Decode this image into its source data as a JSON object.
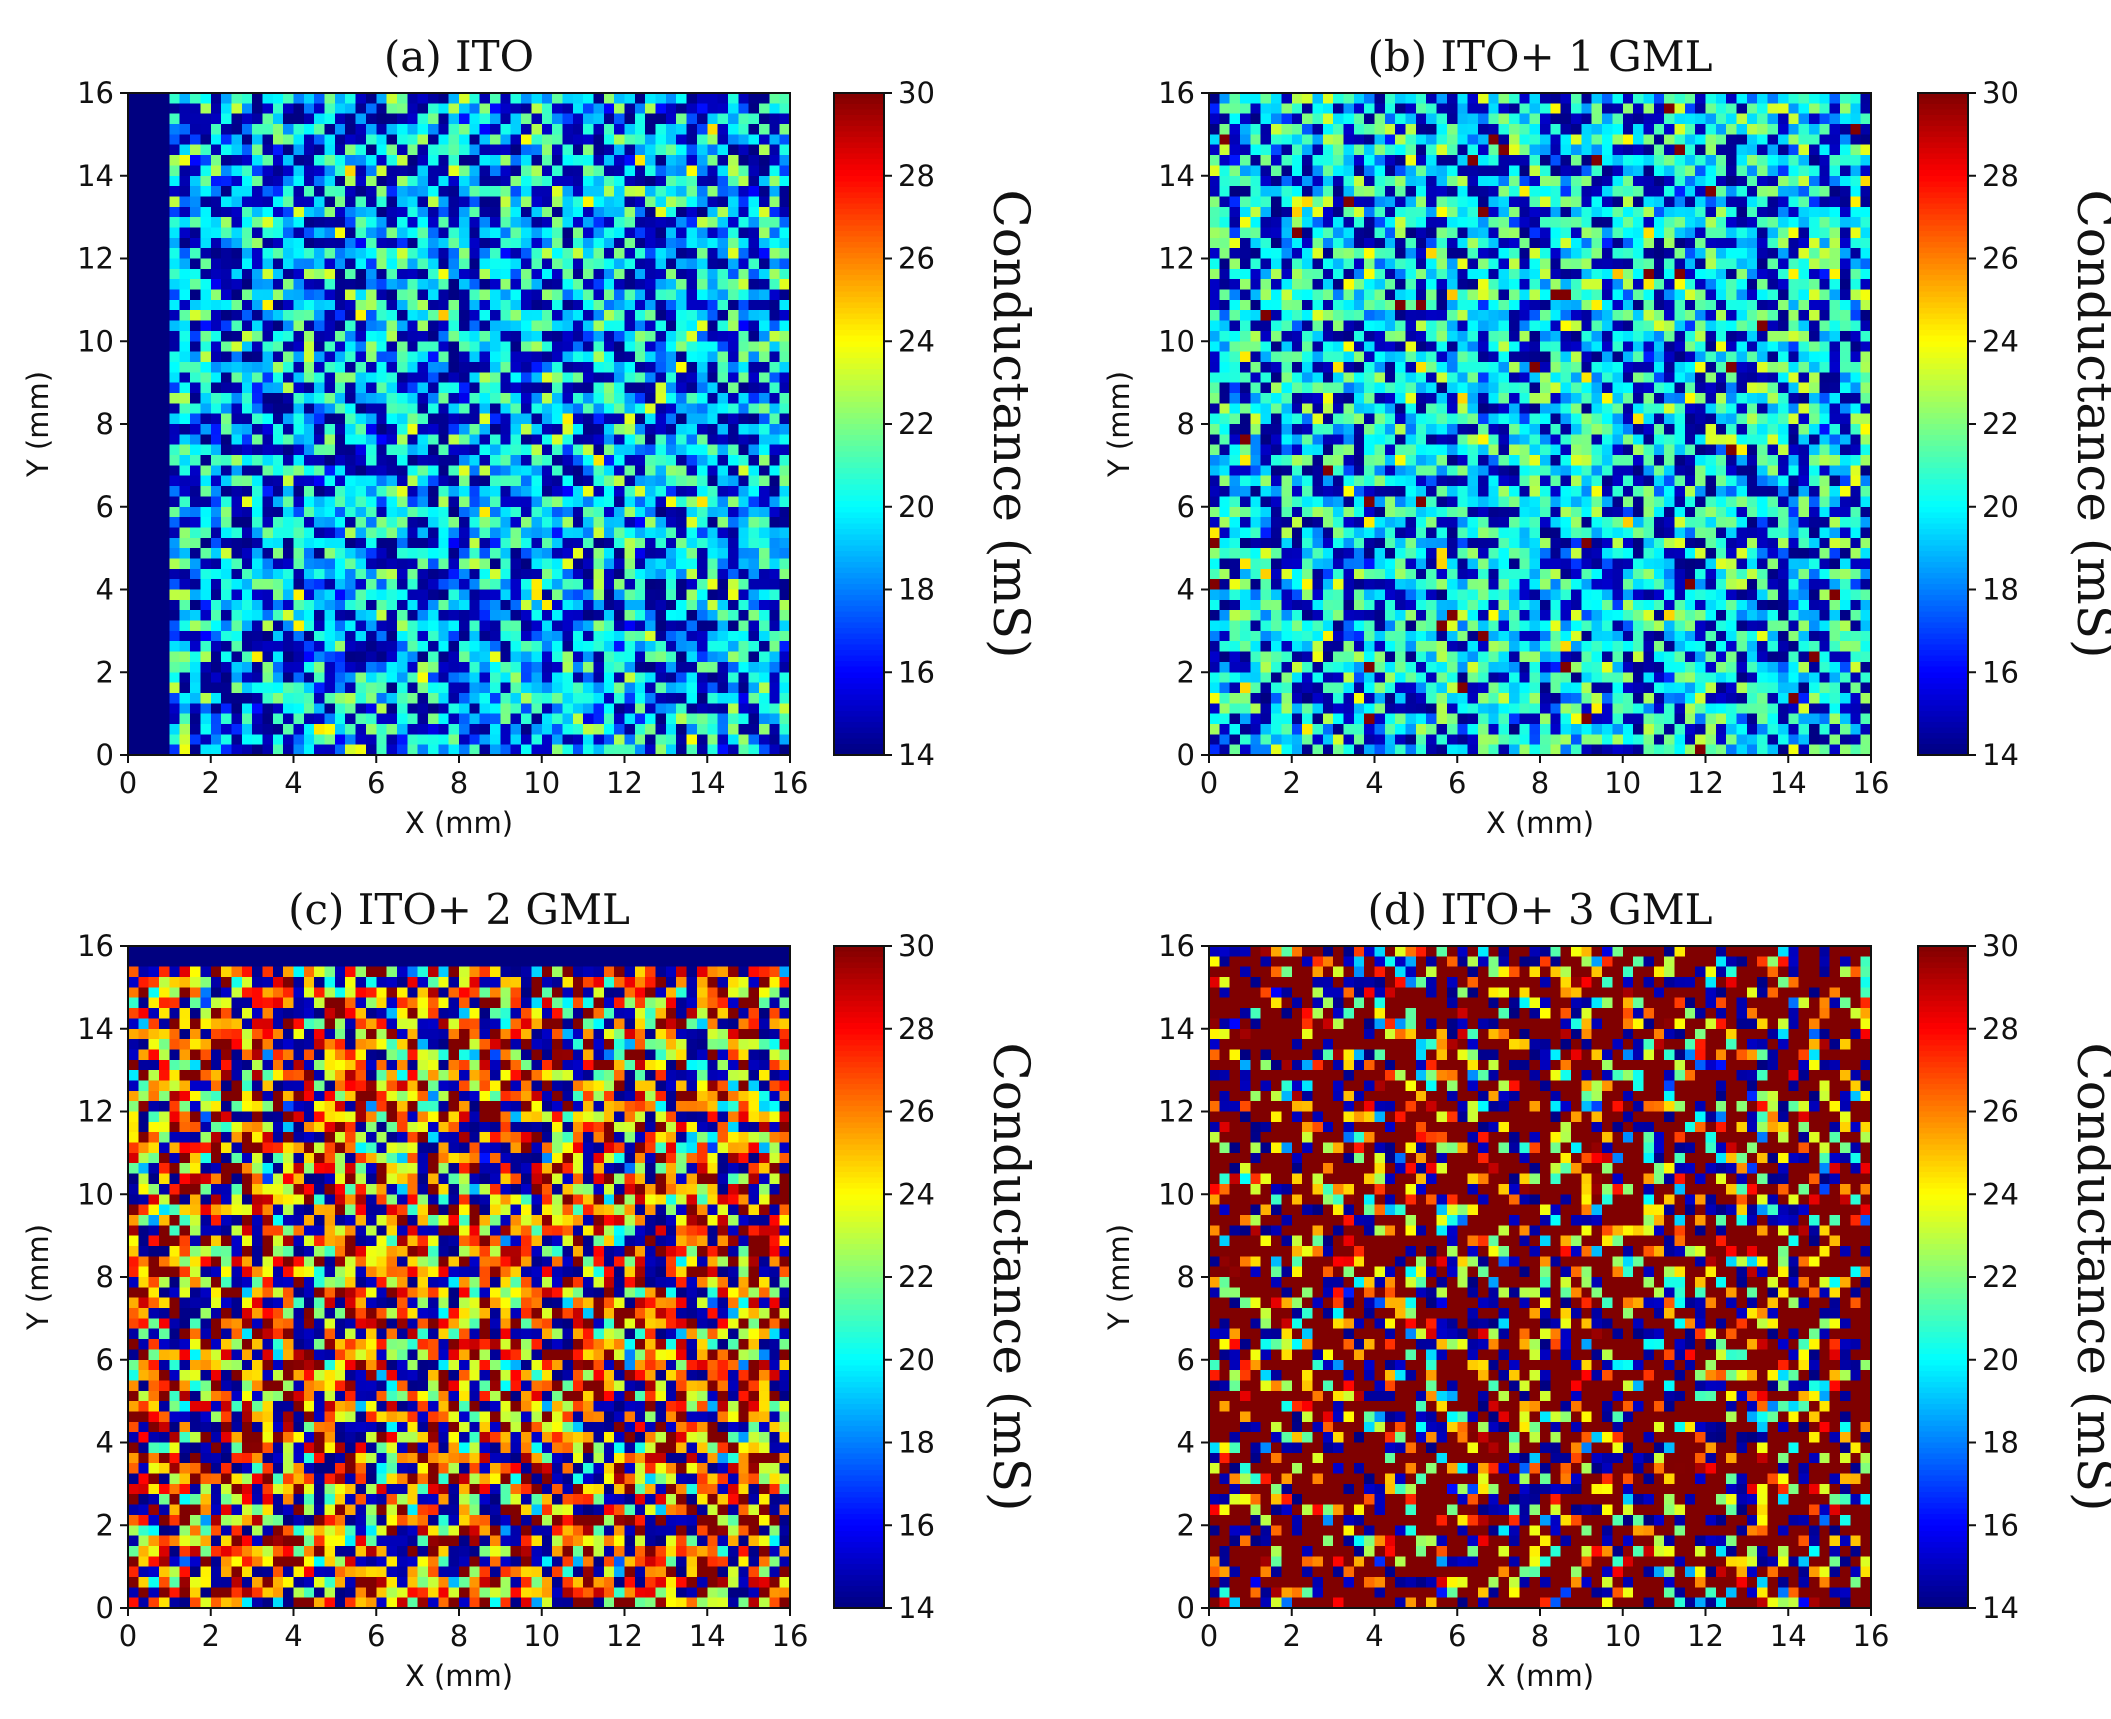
{
  "chart_data": [
    {
      "type": "heatmap",
      "title": "(a) ITO",
      "xlabel": "X (mm)",
      "ylabel": "Y (mm)",
      "xlim": [
        0,
        16
      ],
      "ylim": [
        0,
        16
      ],
      "xticks": [
        0,
        2,
        4,
        6,
        8,
        10,
        12,
        14,
        16
      ],
      "yticks": [
        0,
        2,
        4,
        6,
        8,
        10,
        12,
        14,
        16
      ],
      "colorbar": {
        "label": "Conductance (mS)",
        "min": 14,
        "max": 30,
        "ticks": [
          14,
          16,
          18,
          20,
          22,
          24,
          26,
          28,
          30
        ],
        "colormap": "jet"
      },
      "grid_size": 64,
      "profile": {
        "low_prob": 0.36,
        "mean": 20.0,
        "spread": 2.6,
        "high_prob": 0.0,
        "left_band_mm": 1.0,
        "top_band_mm": 0.0,
        "seed": 11
      }
    },
    {
      "type": "heatmap",
      "title": "(b) ITO+ 1 GML",
      "xlabel": "X (mm)",
      "ylabel": "Y (mm)",
      "xlim": [
        0,
        16
      ],
      "ylim": [
        0,
        16
      ],
      "xticks": [
        0,
        2,
        4,
        6,
        8,
        10,
        12,
        14,
        16
      ],
      "yticks": [
        0,
        2,
        4,
        6,
        8,
        10,
        12,
        14,
        16
      ],
      "colorbar": {
        "label": "Conductance (mS)",
        "min": 14,
        "max": 30,
        "ticks": [
          14,
          16,
          18,
          20,
          22,
          24,
          26,
          28,
          30
        ],
        "colormap": "jet"
      },
      "grid_size": 64,
      "profile": {
        "low_prob": 0.3,
        "mean": 20.5,
        "spread": 2.4,
        "high_prob": 0.01,
        "left_band_mm": 0.0,
        "top_band_mm": 0.0,
        "seed": 23
      }
    },
    {
      "type": "heatmap",
      "title": "(c) ITO+ 2 GML",
      "xlabel": "X (mm)",
      "ylabel": "Y (mm)",
      "xlim": [
        0,
        16
      ],
      "ylim": [
        0,
        16
      ],
      "xticks": [
        0,
        2,
        4,
        6,
        8,
        10,
        12,
        14,
        16
      ],
      "yticks": [
        0,
        2,
        4,
        6,
        8,
        10,
        12,
        14,
        16
      ],
      "colorbar": {
        "label": "Conductance (mS)",
        "min": 14,
        "max": 30,
        "ticks": [
          14,
          16,
          18,
          20,
          22,
          24,
          26,
          28,
          30
        ],
        "colormap": "jet"
      },
      "grid_size": 64,
      "profile": {
        "low_prob": 0.28,
        "mean": 25.0,
        "spread": 4.5,
        "high_prob": 0.08,
        "left_band_mm": 0.0,
        "top_band_mm": 0.5,
        "seed": 37
      }
    },
    {
      "type": "heatmap",
      "title": "(d) ITO+ 3 GML",
      "xlabel": "X (mm)",
      "ylabel": "Y (mm)",
      "xlim": [
        0,
        16
      ],
      "ylim": [
        0,
        16
      ],
      "xticks": [
        0,
        2,
        4,
        6,
        8,
        10,
        12,
        14,
        16
      ],
      "yticks": [
        0,
        2,
        4,
        6,
        8,
        10,
        12,
        14,
        16
      ],
      "colorbar": {
        "label": "Conductance (mS)",
        "min": 14,
        "max": 30,
        "ticks": [
          14,
          16,
          18,
          20,
          22,
          24,
          26,
          28,
          30
        ],
        "colormap": "jet"
      },
      "grid_size": 64,
      "profile": {
        "low_prob": 0.2,
        "mean": 24.0,
        "spread": 5.0,
        "high_prob": 0.5,
        "left_band_mm": 0.0,
        "top_band_mm": 0.0,
        "seed": 53
      }
    }
  ]
}
